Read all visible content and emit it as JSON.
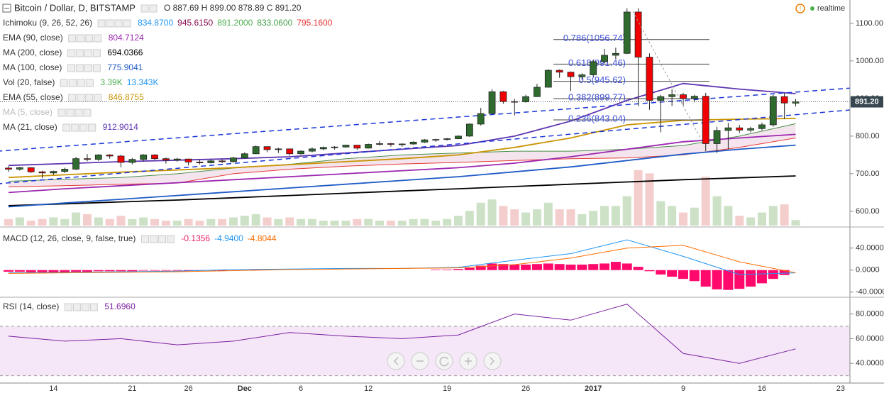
{
  "status": "realtime",
  "chart_data": [
    {
      "type": "candlestick",
      "title": "Bitcoin / Dollar, D, BITSTAMP",
      "ohlc_legend": "O 887.69 H 899.00 878.89 C 891.20",
      "x": [
        "2016-11-10",
        "2016-11-11",
        "2016-11-12",
        "2016-11-13",
        "2016-11-14",
        "2016-11-15",
        "2016-11-16",
        "2016-11-17",
        "2016-11-18",
        "2016-11-19",
        "2016-11-20",
        "2016-11-21",
        "2016-11-22",
        "2016-11-23",
        "2016-11-24",
        "2016-11-25",
        "2016-11-26",
        "2016-11-27",
        "2016-11-28",
        "2016-11-29",
        "2016-11-30",
        "2016-12-01",
        "2016-12-02",
        "2016-12-03",
        "2016-12-04",
        "2016-12-05",
        "2016-12-06",
        "2016-12-07",
        "2016-12-08",
        "2016-12-09",
        "2016-12-10",
        "2016-12-11",
        "2016-12-12",
        "2016-12-13",
        "2016-12-14",
        "2016-12-15",
        "2016-12-16",
        "2016-12-17",
        "2016-12-18",
        "2016-12-19",
        "2016-12-20",
        "2016-12-21",
        "2016-12-22",
        "2016-12-23",
        "2016-12-24",
        "2016-12-25",
        "2016-12-26",
        "2016-12-27",
        "2016-12-28",
        "2016-12-29",
        "2016-12-30",
        "2016-12-31",
        "2017-01-01",
        "2017-01-02",
        "2017-01-03",
        "2017-01-04",
        "2017-01-05",
        "2017-01-06",
        "2017-01-07",
        "2017-01-08",
        "2017-01-09",
        "2017-01-10",
        "2017-01-11",
        "2017-01-12",
        "2017-01-13",
        "2017-01-14",
        "2017-01-15",
        "2017-01-16",
        "2017-01-17",
        "2017-01-18",
        "2017-01-19"
      ],
      "open": [
        715,
        712,
        716,
        705,
        702,
        706,
        712,
        740,
        738,
        750,
        747,
        730,
        738,
        750,
        740,
        736,
        739,
        731,
        729,
        734,
        732,
        742,
        753,
        772,
        764,
        766,
        753,
        760,
        766,
        770,
        771,
        776,
        768,
        778,
        780,
        778,
        779,
        784,
        790,
        791,
        793,
        800,
        832,
        860,
        918,
        892,
        891,
        905,
        930,
        975,
        970,
        958,
        963,
        998,
        1015,
        1020,
        1130,
        1010,
        895,
        905,
        910,
        900,
        906,
        780,
        815,
        822,
        816,
        820,
        830,
        905,
        887.69
      ],
      "high": [
        720,
        718,
        717,
        708,
        708,
        716,
        745,
        752,
        752,
        752,
        750,
        742,
        752,
        752,
        743,
        742,
        740,
        737,
        739,
        738,
        745,
        757,
        775,
        773,
        769,
        767,
        762,
        770,
        772,
        773,
        777,
        776,
        780,
        787,
        782,
        781,
        786,
        792,
        793,
        795,
        802,
        834,
        875,
        925,
        920,
        899,
        910,
        939,
        978,
        977,
        972,
        967,
        1003,
        1032,
        1035,
        1140,
        1140,
        1020,
        910,
        925,
        915,
        910,
        915,
        825,
        835,
        830,
        825,
        836,
        910,
        915,
        899
      ],
      "low": [
        705,
        708,
        702,
        688,
        697,
        702,
        710,
        733,
        734,
        740,
        717,
        725,
        733,
        736,
        727,
        732,
        722,
        725,
        727,
        728,
        730,
        740,
        752,
        757,
        755,
        748,
        751,
        757,
        762,
        764,
        769,
        763,
        767,
        775,
        772,
        772,
        777,
        782,
        785,
        788,
        792,
        798,
        828,
        858,
        886,
        855,
        889,
        904,
        929,
        955,
        920,
        950,
        958,
        994,
        1005,
        1018,
        880,
        870,
        810,
        880,
        880,
        890,
        760,
        755,
        765,
        808,
        810,
        815,
        825,
        845,
        878.89
      ],
      "close": [
        712,
        716,
        705,
        702,
        706,
        712,
        740,
        738,
        750,
        747,
        730,
        738,
        750,
        740,
        736,
        739,
        731,
        729,
        734,
        732,
        742,
        753,
        772,
        764,
        766,
        753,
        760,
        766,
        770,
        771,
        776,
        768,
        778,
        780,
        778,
        779,
        784,
        790,
        791,
        793,
        800,
        832,
        860,
        918,
        892,
        891,
        905,
        930,
        975,
        970,
        958,
        963,
        998,
        1015,
        1020,
        1130,
        1010,
        895,
        905,
        910,
        900,
        906,
        780,
        815,
        822,
        816,
        820,
        830,
        905,
        888,
        891.2
      ],
      "up_color": "#2f6b2f",
      "down_color": "#f00000",
      "ylim": [
        562,
        1162
      ],
      "yticks": [
        {
          "value": 1100,
          "label": "1100.00"
        },
        {
          "value": 1000,
          "label": "1000.00"
        },
        {
          "value": 900,
          "label": "900.00"
        },
        {
          "value": 800,
          "label": "800.00"
        },
        {
          "value": 700,
          "label": "700.00"
        },
        {
          "value": 600,
          "label": "600.00"
        }
      ],
      "xticks": [
        {
          "value": "2016-11-14",
          "label": "14"
        },
        {
          "value": "2016-11-21",
          "label": "21"
        },
        {
          "value": "2016-11-26",
          "label": "26"
        },
        {
          "value": "2016-12-01",
          "label": "Dec"
        },
        {
          "value": "2016-12-06",
          "label": "6"
        },
        {
          "value": "2016-12-12",
          "label": "12"
        },
        {
          "value": "2016-12-19",
          "label": "19"
        },
        {
          "value": "2016-12-26",
          "label": "26"
        },
        {
          "value": "2017-01-01",
          "label": "2017"
        },
        {
          "value": "2017-01-09",
          "label": "9"
        },
        {
          "value": "2017-01-16",
          "label": "16"
        },
        {
          "value": "2017-01-23",
          "label": "23"
        }
      ],
      "last_price": {
        "value": 891.2,
        "label": "891.20"
      },
      "sample_x": [
        "2016-11-10",
        "2016-11-15",
        "2016-11-20",
        "2016-11-25",
        "2016-11-30",
        "2016-12-05",
        "2016-12-10",
        "2016-12-15",
        "2016-12-20",
        "2016-12-25",
        "2016-12-30",
        "2017-01-04",
        "2017-01-09",
        "2017-01-14",
        "2017-01-19"
      ],
      "indicators": [
        {
          "name": "Ichimoku (9, 26, 52, 26)",
          "legend": [
            "834.8700",
            "945.6150",
            "891.2000",
            "833.0600",
            "795.1600"
          ],
          "legend_colors": [
            "#2196f3",
            "#880e4f",
            "#4caf50",
            "#43a047",
            "#e53935"
          ],
          "spans": [
            {
              "color": "#4a8f4a",
              "values": [
                680,
                685,
                690,
                700,
                715,
                725,
                740,
                750,
                755,
                760,
                760,
                765,
                775,
                800,
                833
              ]
            },
            {
              "color": "#e53935",
              "values": [
                665,
                668,
                672,
                675,
                700,
                712,
                720,
                726,
                730,
                735,
                740,
                742,
                750,
                770,
                795
              ]
            }
          ]
        },
        {
          "name": "EMA (90, close)",
          "legend": [
            "804.7124"
          ],
          "legend_colors": [
            "#9c27b0"
          ],
          "color": "#9c27b0",
          "values": [
            650,
            660,
            668,
            676,
            684,
            692,
            700,
            708,
            716,
            728,
            745,
            765,
            785,
            795,
            804.7
          ]
        },
        {
          "name": "MA (200, close)",
          "legend": [
            "694.0366"
          ],
          "legend_colors": [
            "#000000"
          ],
          "color": "#000000",
          "values": [
            615,
            620,
            625,
            630,
            636,
            642,
            648,
            654,
            660,
            666,
            672,
            678,
            684,
            689,
            694
          ]
        },
        {
          "name": "MA (100, close)",
          "legend": [
            "775.9041"
          ],
          "legend_colors": [
            "#1e5bc6"
          ],
          "color": "#1e5bc6",
          "values": [
            612,
            622,
            632,
            642,
            652,
            662,
            672,
            682,
            692,
            705,
            718,
            735,
            752,
            765,
            775.9
          ]
        },
        {
          "name": "Vol (20, false)",
          "legend": [
            "3.39K",
            "13.343K"
          ],
          "legend_colors": [
            "#4caf50",
            "#2196f3"
          ],
          "volume": [
            4,
            5,
            3,
            4,
            5,
            4,
            8,
            7,
            5,
            4,
            6,
            4,
            5,
            4,
            3,
            3,
            4,
            3,
            4,
            4,
            5,
            6,
            7,
            5,
            4,
            5,
            4,
            4,
            3,
            3,
            3,
            4,
            4,
            3,
            3,
            3,
            4,
            4,
            3,
            4,
            6,
            9,
            14,
            16,
            12,
            10,
            8,
            10,
            14,
            10,
            10,
            7,
            9,
            12,
            12,
            18,
            34,
            32,
            15,
            12,
            8,
            11,
            30,
            18,
            12,
            6,
            5,
            8,
            12,
            13,
            3.39
          ]
        },
        {
          "name": "EMA (55, close)",
          "legend": [
            "846.8755"
          ],
          "legend_colors": [
            "#c99400"
          ],
          "color": "#c99400",
          "values": [
            690,
            697,
            704,
            710,
            716,
            724,
            732,
            740,
            750,
            770,
            795,
            830,
            842,
            845,
            846.9
          ]
        },
        {
          "name": "MA (5, close)",
          "legend": [],
          "legend_colors": []
        },
        {
          "name": "MA (21, close)",
          "legend": [
            "912.9014"
          ],
          "legend_colors": [
            "#5e35b1"
          ],
          "color": "#5e35b1",
          "values": [
            722,
            727,
            732,
            736,
            740,
            745,
            755,
            765,
            775,
            800,
            840,
            895,
            940,
            925,
            912.9
          ]
        }
      ],
      "trendlines": [
        {
          "x": [
            "2016-11-09",
            "2017-01-24"
          ],
          "values": [
            760,
            928
          ]
        },
        {
          "x": [
            "2016-11-09",
            "2017-01-24"
          ],
          "values": [
            673,
            870
          ]
        }
      ],
      "fib": [
        {
          "label": "0.786(1056.74)",
          "value": 1056.74
        },
        {
          "label": "0.618(991.46)",
          "value": 991.46
        },
        {
          "label": "0.5(945.62)",
          "value": 945.62
        },
        {
          "label": "0.382(899.77)",
          "value": 899.77
        },
        {
          "label": "0.236(843.04)",
          "value": 843.04
        }
      ]
    },
    {
      "type": "macd",
      "title": "MACD (12, 26, close, 9, false, true)",
      "legend": [
        "-0.1356",
        "-4.9400",
        "-4.8044"
      ],
      "legend_colors": [
        "#e91e63",
        "#2196f3",
        "#ff6d00"
      ],
      "histogram": [
        -3,
        -3,
        -4,
        -4,
        -4,
        -4,
        -3,
        -3,
        -2,
        -2,
        -2,
        -2,
        -1,
        -1,
        -1,
        -1,
        -1,
        -1,
        -1,
        -1,
        0,
        0,
        1,
        1,
        0,
        0,
        0,
        0,
        0,
        0,
        0,
        0,
        0,
        0,
        0,
        0,
        0,
        0,
        1,
        1,
        2,
        4,
        8,
        12,
        11,
        10,
        10,
        11,
        12,
        11,
        10,
        10,
        11,
        12,
        15,
        12,
        6,
        -2,
        -8,
        -12,
        -16,
        -20,
        -30,
        -35,
        -36,
        -34,
        -30,
        -24,
        -16,
        -9,
        -0.1356
      ],
      "histogram_color": "#ff0a6c",
      "macd": [
        -5,
        -4,
        -3,
        -2,
        1,
        2,
        3,
        3,
        5,
        18,
        30,
        55,
        25,
        -8,
        -4.94
      ],
      "macd_color": "#2196f3",
      "signal": [
        -6,
        -5,
        -4,
        -3,
        -1,
        1,
        2,
        3,
        4,
        10,
        22,
        40,
        45,
        15,
        -4.8044
      ],
      "signal_color": "#ff6d00",
      "ylim": [
        -48,
        77
      ],
      "yticks": [
        {
          "value": 40,
          "label": "40.0000"
        },
        {
          "value": 0,
          "label": "0.0000"
        },
        {
          "value": -40,
          "label": "-40.0000"
        }
      ]
    },
    {
      "type": "line",
      "title": "RSI (14, close)",
      "legend": [
        "51.6960"
      ],
      "legend_colors": [
        "#7b1fa2"
      ],
      "color": "#7b1fa2",
      "values": [
        62,
        58,
        60,
        55,
        58,
        65,
        62,
        60,
        63,
        80,
        75,
        88,
        48,
        40,
        51.696
      ],
      "band": [
        30,
        70
      ],
      "ylim": [
        24,
        93
      ],
      "yticks": [
        {
          "value": 80,
          "label": "80.0000"
        },
        {
          "value": 60,
          "label": "60.0000"
        },
        {
          "value": 40,
          "label": "40.0000"
        }
      ]
    }
  ]
}
